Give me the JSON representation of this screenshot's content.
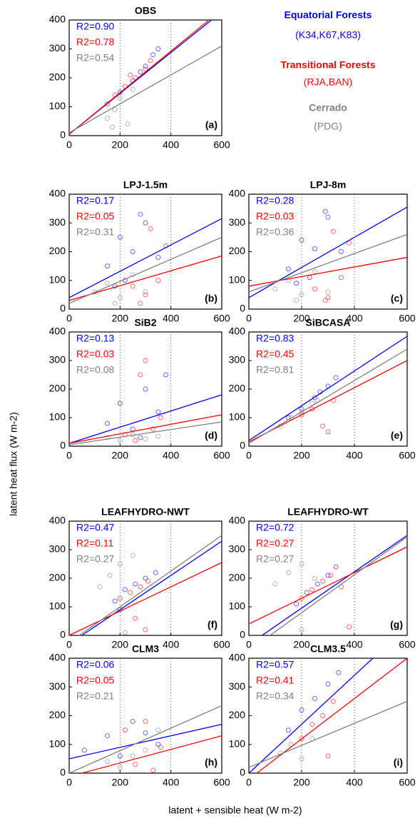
{
  "figure": {
    "x_label": "latent + sensible heat (W m-2)",
    "y_label": "latent heat flux (W m-2)",
    "legend": [
      {
        "name": "Equatorial Forests",
        "sites": "(K34,K67,K83)",
        "color": "#0000ff"
      },
      {
        "name": "Transitional Forests",
        "sites": "(RJA,BAN)",
        "color": "#ff0000"
      },
      {
        "name": "Cerrado",
        "sites": "(PDG)",
        "color": "#808080"
      }
    ]
  },
  "chart_data": [
    {
      "type": "scatter",
      "title": "OBS",
      "panel_label": "(a)",
      "xlim": [
        0,
        600
      ],
      "ylim": [
        0,
        400
      ],
      "xticks": [
        0,
        200,
        400,
        600
      ],
      "yticks": [
        0,
        100,
        200,
        300,
        400
      ],
      "xgrid": true,
      "series": [
        {
          "color": "#0000ff",
          "label": "R2=0.90",
          "x": [
            150,
            200,
            250,
            300,
            330,
            280,
            350
          ],
          "values": [
            110,
            150,
            190,
            240,
            280,
            220,
            300
          ],
          "fit_x": [
            0,
            560
          ],
          "fit_y": [
            5,
            400
          ]
        },
        {
          "color": "#ff0000",
          "label": "R2=0.78",
          "x": [
            180,
            220,
            260,
            300,
            240,
            320
          ],
          "values": [
            140,
            170,
            200,
            230,
            210,
            260
          ],
          "fit_x": [
            0,
            550
          ],
          "fit_y": [
            5,
            400
          ]
        },
        {
          "color": "#808080",
          "label": "R2=0.54",
          "x": [
            150,
            180,
            200,
            230,
            250,
            170
          ],
          "values": [
            60,
            90,
            130,
            40,
            160,
            30
          ],
          "fit_x": [
            0,
            600
          ],
          "fit_y": [
            10,
            310
          ]
        }
      ]
    },
    {
      "type": "scatter",
      "title": "LPJ-1.5m",
      "panel_label": "(b)",
      "xlim": [
        0,
        600
      ],
      "ylim": [
        0,
        400
      ],
      "xticks": [
        0,
        200,
        400,
        600
      ],
      "yticks": [
        0,
        100,
        200,
        300,
        400
      ],
      "xgrid": true,
      "series": [
        {
          "color": "#0000ff",
          "label": "R2=0.17",
          "x": [
            150,
            200,
            250,
            300,
            350,
            220,
            280,
            180
          ],
          "values": [
            150,
            250,
            200,
            300,
            180,
            100,
            330,
            80
          ],
          "fit_x": [
            0,
            600
          ],
          "fit_y": [
            40,
            315
          ]
        },
        {
          "color": "#ff0000",
          "label": "R2=0.05",
          "x": [
            250,
            300,
            320,
            350,
            380,
            280
          ],
          "values": [
            80,
            50,
            280,
            100,
            220,
            20
          ],
          "fit_x": [
            0,
            600
          ],
          "fit_y": [
            30,
            185
          ]
        },
        {
          "color": "#808080",
          "label": "R2=0.31",
          "x": [
            100,
            150,
            200,
            250,
            300,
            180
          ],
          "values": [
            60,
            90,
            40,
            120,
            60,
            20
          ],
          "fit_x": [
            0,
            600
          ],
          "fit_y": [
            20,
            250
          ]
        }
      ]
    },
    {
      "type": "scatter",
      "title": "LPJ-8m",
      "panel_label": "(c)",
      "xlim": [
        0,
        600
      ],
      "ylim": [
        0,
        400
      ],
      "xticks": [
        0,
        200,
        400,
        600
      ],
      "yticks": [
        0,
        100,
        200,
        300,
        400
      ],
      "xgrid": true,
      "series": [
        {
          "color": "#0000ff",
          "label": "R2=0.28",
          "x": [
            150,
            200,
            250,
            300,
            350,
            230,
            290,
            180
          ],
          "values": [
            140,
            240,
            210,
            320,
            200,
            110,
            340,
            90
          ],
          "fit_x": [
            0,
            600
          ],
          "fit_y": [
            40,
            355
          ]
        },
        {
          "color": "#ff0000",
          "label": "R2=0.03",
          "x": [
            250,
            300,
            320,
            350,
            380,
            290
          ],
          "values": [
            70,
            40,
            270,
            110,
            230,
            30
          ],
          "fit_x": [
            0,
            600
          ],
          "fit_y": [
            80,
            180
          ]
        },
        {
          "color": "#808080",
          "label": "R2=0.36",
          "x": [
            100,
            150,
            200,
            250,
            300,
            180
          ],
          "values": [
            70,
            100,
            50,
            130,
            60,
            30
          ],
          "fit_x": [
            0,
            600
          ],
          "fit_y": [
            60,
            260
          ]
        }
      ]
    },
    {
      "type": "scatter",
      "title": "SiB2",
      "panel_label": "(d)",
      "xlim": [
        0,
        600
      ],
      "ylim": [
        0,
        400
      ],
      "xticks": [
        0,
        200,
        400,
        600
      ],
      "yticks": [
        0,
        100,
        200,
        300,
        400
      ],
      "xgrid": true,
      "series": [
        {
          "color": "#0000ff",
          "label": "R2=0.13",
          "x": [
            150,
            200,
            250,
            300,
            350,
            280,
            380
          ],
          "values": [
            80,
            150,
            60,
            200,
            120,
            30,
            250
          ],
          "fit_x": [
            0,
            600
          ],
          "fit_y": [
            10,
            180
          ]
        },
        {
          "color": "#ff0000",
          "label": "R2=0.03",
          "x": [
            220,
            260,
            300,
            330,
            360,
            280
          ],
          "values": [
            40,
            20,
            300,
            60,
            100,
            250
          ],
          "fit_x": [
            0,
            600
          ],
          "fit_y": [
            10,
            110
          ]
        },
        {
          "color": "#808080",
          "label": "R2=0.08",
          "x": [
            150,
            200,
            250,
            300,
            350
          ],
          "values": [
            30,
            20,
            40,
            25,
            35
          ],
          "fit_x": [
            0,
            600
          ],
          "fit_y": [
            5,
            85
          ]
        }
      ]
    },
    {
      "type": "scatter",
      "title": "SiBCASA",
      "panel_label": "(e)",
      "xlim": [
        0,
        600
      ],
      "ylim": [
        0,
        400
      ],
      "xticks": [
        0,
        200,
        400,
        600
      ],
      "yticks": [
        0,
        100,
        200,
        300,
        400
      ],
      "xgrid": true,
      "series": [
        {
          "color": "#0000ff",
          "label": "R2=0.83",
          "x": [
            150,
            200,
            250,
            300,
            330,
            270
          ],
          "values": [
            100,
            130,
            170,
            210,
            240,
            190
          ],
          "fit_x": [
            0,
            600
          ],
          "fit_y": [
            20,
            385
          ]
        },
        {
          "color": "#ff0000",
          "label": "R2=0.45",
          "x": [
            200,
            240,
            280,
            320,
            300
          ],
          "values": [
            110,
            130,
            70,
            160,
            50
          ],
          "fit_x": [
            0,
            600
          ],
          "fit_y": [
            15,
            300
          ]
        },
        {
          "color": "#808080",
          "label": "R2=0.81",
          "x": [
            120,
            160,
            200,
            240,
            260
          ],
          "values": [
            70,
            100,
            120,
            150,
            160
          ],
          "fit_x": [
            0,
            600
          ],
          "fit_y": [
            10,
            340
          ]
        }
      ]
    },
    {
      "type": "scatter",
      "title": "LEAFHYDRO-NWT",
      "panel_label": "(f)",
      "xlim": [
        0,
        600
      ],
      "ylim": [
        0,
        400
      ],
      "xticks": [
        0,
        200,
        400,
        600
      ],
      "yticks": [
        0,
        100,
        200,
        300,
        400
      ],
      "xgrid": true,
      "series": [
        {
          "color": "#0000ff",
          "label": "R2=0.47",
          "x": [
            180,
            220,
            260,
            300,
            340,
            200
          ],
          "values": [
            120,
            160,
            180,
            200,
            220,
            90
          ],
          "fit_x": [
            50,
            600
          ],
          "fit_y": [
            0,
            330
          ]
        },
        {
          "color": "#ff0000",
          "label": "R2=0.11",
          "x": [
            200,
            240,
            280,
            310,
            300,
            260
          ],
          "values": [
            130,
            150,
            170,
            190,
            20,
            60
          ],
          "fit_x": [
            0,
            600
          ],
          "fit_y": [
            0,
            255
          ]
        },
        {
          "color": "#808080",
          "label": "R2=0.27",
          "x": [
            120,
            160,
            200,
            250,
            300,
            220
          ],
          "values": [
            170,
            210,
            250,
            280,
            200,
            10
          ],
          "fit_x": [
            40,
            600
          ],
          "fit_y": [
            0,
            350
          ]
        }
      ]
    },
    {
      "type": "scatter",
      "title": "LEAFHYDRO-WT",
      "panel_label": "(g)",
      "xlim": [
        0,
        600
      ],
      "ylim": [
        0,
        400
      ],
      "xticks": [
        0,
        200,
        400,
        600
      ],
      "yticks": [
        0,
        100,
        200,
        300,
        400
      ],
      "xgrid": true,
      "series": [
        {
          "color": "#0000ff",
          "label": "R2=0.72",
          "x": [
            180,
            220,
            260,
            300,
            330
          ],
          "values": [
            110,
            150,
            180,
            210,
            240
          ],
          "fit_x": [
            50,
            600
          ],
          "fit_y": [
            0,
            350
          ]
        },
        {
          "color": "#ff0000",
          "label": "R2=0.27",
          "x": [
            200,
            240,
            280,
            310,
            350,
            380
          ],
          "values": [
            130,
            160,
            190,
            210,
            170,
            30
          ],
          "fit_x": [
            0,
            600
          ],
          "fit_y": [
            40,
            310
          ]
        },
        {
          "color": "#808080",
          "label": "R2=0.27",
          "x": [
            100,
            150,
            200,
            250,
            200
          ],
          "values": [
            180,
            220,
            250,
            200,
            20
          ],
          "fit_x": [
            80,
            600
          ],
          "fit_y": [
            0,
            345
          ]
        }
      ]
    },
    {
      "type": "scatter",
      "title": "CLM3",
      "panel_label": "(h)",
      "xlim": [
        0,
        600
      ],
      "ylim": [
        0,
        400
      ],
      "xticks": [
        0,
        200,
        400,
        600
      ],
      "yticks": [
        0,
        100,
        200,
        300,
        400
      ],
      "xgrid": true,
      "series": [
        {
          "color": "#0000ff",
          "label": "R2=0.06",
          "x": [
            60,
            150,
            200,
            250,
            300,
            350
          ],
          "values": [
            80,
            130,
            60,
            180,
            140,
            100
          ],
          "fit_x": [
            0,
            600
          ],
          "fit_y": [
            50,
            170
          ]
        },
        {
          "color": "#ff0000",
          "label": "R2=0.05",
          "x": [
            220,
            260,
            300,
            330,
            360
          ],
          "values": [
            150,
            30,
            180,
            10,
            90
          ],
          "fit_x": [
            50,
            600
          ],
          "fit_y": [
            0,
            130
          ]
        },
        {
          "color": "#808080",
          "label": "R2=0.21",
          "x": [
            150,
            200,
            250,
            300,
            350
          ],
          "values": [
            40,
            20,
            60,
            80,
            150
          ],
          "fit_x": [
            0,
            600
          ],
          "fit_y": [
            0,
            235
          ]
        }
      ]
    },
    {
      "type": "scatter",
      "title": "CLM3.5",
      "panel_label": "(i)",
      "xlim": [
        0,
        600
      ],
      "ylim": [
        0,
        400
      ],
      "xticks": [
        0,
        200,
        400,
        600
      ],
      "yticks": [
        0,
        100,
        200,
        300,
        400
      ],
      "xgrid": true,
      "series": [
        {
          "color": "#0000ff",
          "label": "R2=0.57",
          "x": [
            150,
            200,
            250,
            300,
            340
          ],
          "values": [
            150,
            220,
            260,
            310,
            350
          ],
          "fit_x": [
            0,
            470
          ],
          "fit_y": [
            0,
            400
          ]
        },
        {
          "color": "#ff0000",
          "label": "R2=0.41",
          "x": [
            200,
            240,
            280,
            320,
            300
          ],
          "values": [
            120,
            170,
            200,
            250,
            60
          ],
          "fit_x": [
            30,
            600
          ],
          "fit_y": [
            0,
            400
          ]
        },
        {
          "color": "#808080",
          "label": "R2=0.34",
          "x": [
            120,
            160,
            200,
            240
          ],
          "values": [
            70,
            100,
            50,
            120
          ],
          "fit_x": [
            0,
            600
          ],
          "fit_y": [
            20,
            250
          ]
        }
      ]
    }
  ]
}
